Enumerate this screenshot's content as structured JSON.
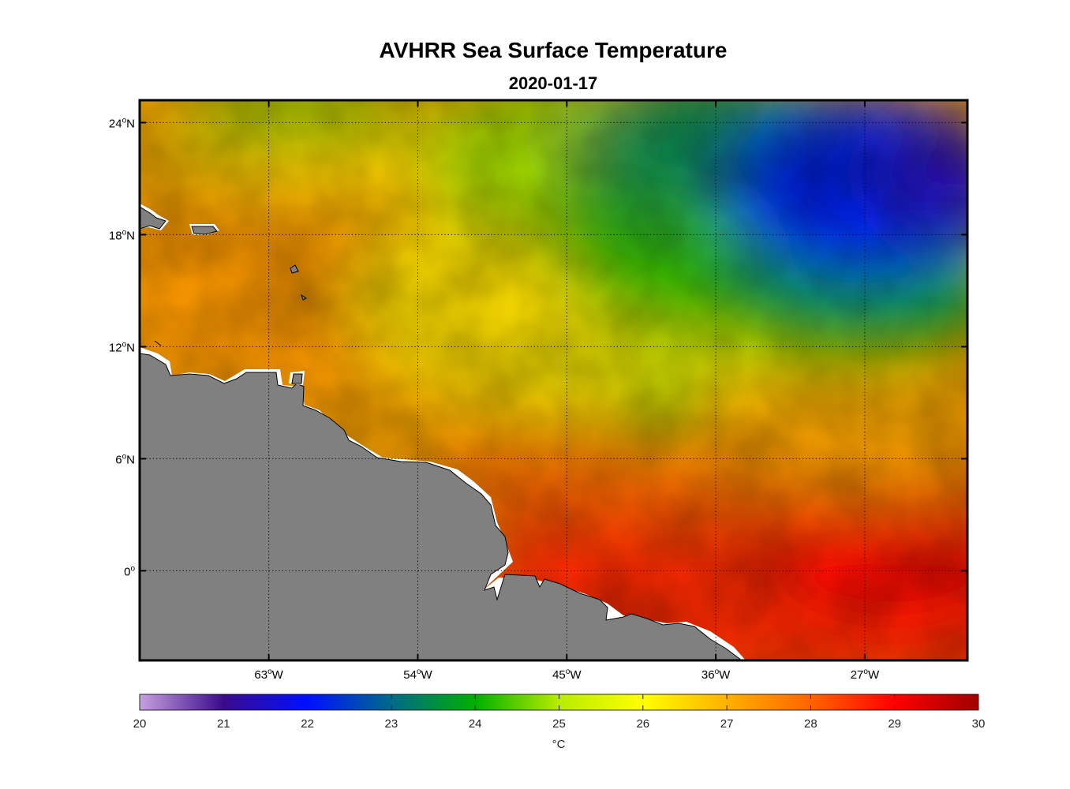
{
  "title": "AVHRR Sea Surface Temperature",
  "subtitle": "2020-01-17",
  "map": {
    "lon_range": [
      -70.8,
      -20.8
    ],
    "lat_range": [
      -4.8,
      25.2
    ],
    "lon_ticks": [
      {
        "value": -63,
        "num": "63",
        "hem": "W"
      },
      {
        "value": -54,
        "num": "54",
        "hem": "W"
      },
      {
        "value": -45,
        "num": "45",
        "hem": "W"
      },
      {
        "value": -36,
        "num": "36",
        "hem": "W"
      },
      {
        "value": -27,
        "num": "27",
        "hem": "W"
      }
    ],
    "lat_ticks": [
      {
        "value": 24,
        "num": "24",
        "hem": "N"
      },
      {
        "value": 18,
        "num": "18",
        "hem": "N"
      },
      {
        "value": 12,
        "num": "12",
        "hem": "N"
      },
      {
        "value": 6,
        "num": "6",
        "hem": "N"
      },
      {
        "value": 0,
        "num": "0",
        "hem": ""
      }
    ],
    "grid": "dotted",
    "land_color": "#808080",
    "degree_symbol": "o"
  },
  "colorbar": {
    "min": 20,
    "max": 30,
    "ticks": [
      "20",
      "21",
      "22",
      "23",
      "24",
      "25",
      "26",
      "27",
      "28",
      "29",
      "30"
    ],
    "unit": "°C",
    "colors": [
      "#c8a0e0",
      "#3a0a8c",
      "#0010ff",
      "#006a88",
      "#00b000",
      "#c8f000",
      "#ffff00",
      "#ffa000",
      "#ff6000",
      "#ff0000",
      "#a00000"
    ]
  }
}
